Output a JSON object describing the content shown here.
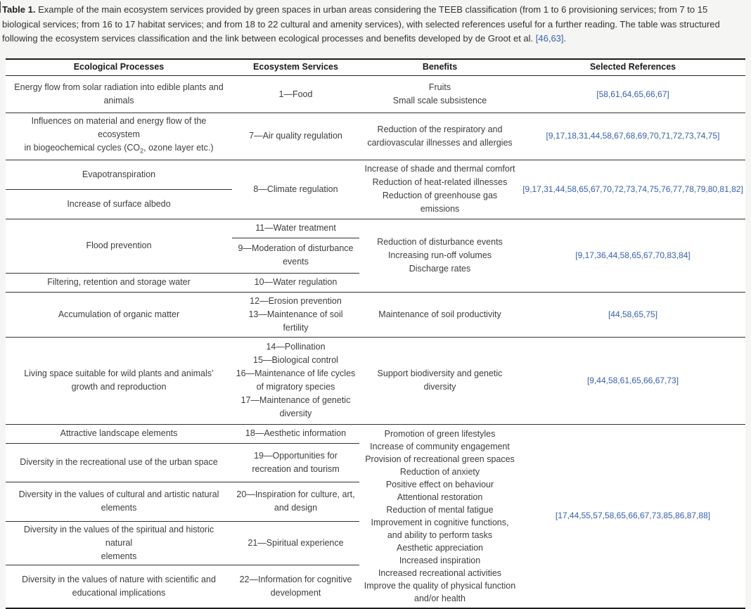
{
  "colors": {
    "link_blue": "#3760ae",
    "text": "#3d3d3d",
    "rule": "#1c1c1c",
    "page_bg": "#f5f5f4"
  },
  "caption": {
    "label": "Table 1.",
    "text": " Example of the main ecosystem services provided by green spaces in urban areas considering the TEEB classification (from 1 to 6 provisioning services; from 7 to 15 biological services; from 16 to 17 habitat services; and from 18 to 22 cultural and amenity services), with selected references useful for a further reading. The table was structured following the ecosystem services classification and the link between ecological processes and benefits developed by de Groot et al. ",
    "link": "[46,63]",
    "period": "."
  },
  "table": {
    "headers": {
      "processes": "Ecological Processes",
      "services": "Ecosystem Services",
      "benefits": "Benefits",
      "references": "Selected References"
    },
    "groups": {
      "food": {
        "process": "Energy flow from solar radiation into edible plants and\nanimals",
        "service": "1—Food",
        "benefits": "Fruits\nSmall scale subsistence",
        "refs": "[58,61,64,65,66,67]"
      },
      "air": {
        "process_prefix": "Influences on material and energy flow of the ecosystem\nin biogeochemical cycles (CO",
        "process_sub": "2",
        "process_suffix": ", ozone layer etc.)",
        "service": "7—Air quality regulation",
        "benefits": "Reduction of the respiratory and\ncardiovascular illnesses and allergies",
        "refs": "[9,17,18,31,44,58,67,68,69,70,71,72,73,74,75]"
      },
      "climate": {
        "process_1": "Evapotranspiration",
        "process_2": "Increase of surface albedo",
        "service": "8—Climate regulation",
        "benefits": "Increase of shade and thermal comfort\nReduction of heat-related illnesses\nReduction of greenhouse gas\nemissions",
        "refs": "[9,17,31,44,58,65,67,70,72,73,74,75,76,77,78,79,80,81,82]"
      },
      "water": {
        "process_1": "Flood prevention",
        "service_1": "11—Water treatment",
        "service_2": "9—Moderation of disturbance\nevents",
        "process_2": "Filtering, retention and storage water",
        "service_3": "10—Water regulation",
        "benefits": "Reduction of disturbance events\nIncreasing run-off volumes\nDischarge rates",
        "refs": "[9,17,36,44,58,65,67,70,83,84]"
      },
      "soil": {
        "process": "Accumulation of organic matter",
        "services": "12—Erosion prevention\n13—Maintenance of soil\nfertility",
        "benefits": "Maintenance of soil productivity",
        "refs": "[44,58,65,75]"
      },
      "biodiversity": {
        "process": "Living space suitable for wild plants and animals’\ngrowth and reproduction",
        "services": "14—Pollination\n15—Biological control\n16—Maintenance of life cycles\nof migratory species\n17—Maintenance of genetic\ndiversity",
        "benefits": "Support biodiversity and genetic\ndiversity",
        "refs": "[9,44,58,61,65,66,67,73]"
      },
      "cultural": {
        "rows": [
          {
            "process": "Attractive landscape elements",
            "service": "18—Aesthetic information"
          },
          {
            "process": "Diversity in the recreational use of the urban space",
            "service": "19—Opportunities for\nrecreation and tourism"
          },
          {
            "process": "Diversity in the values of cultural and artistic natural\nelements",
            "service": "20—Inspiration for culture, art,\nand design"
          },
          {
            "process": "Diversity in the values of the spiritual and historic natural\nelements",
            "service": "21—Spiritual experience"
          },
          {
            "process": "Diversity in the values of nature with scientific and\neducational implications",
            "service": "22—Information for cognitive\ndevelopment"
          }
        ],
        "benefits": "Promotion of green lifestyles\nIncrease of community engagement\nProvision of recreational green spaces\nReduction of anxiety\nPositive effect on behaviour\nAttentional restoration\nReduction of mental fatigue\nImprovement in cognitive functions,\nand ability to perform tasks\nAesthetic appreciation\nIncreased inspiration\nIncreased recreational activities\nImprove the quality of physical function\nand/or health",
        "refs": "[17,44,55,57,58,65,66,67,73,85,86,87,88]"
      }
    }
  }
}
